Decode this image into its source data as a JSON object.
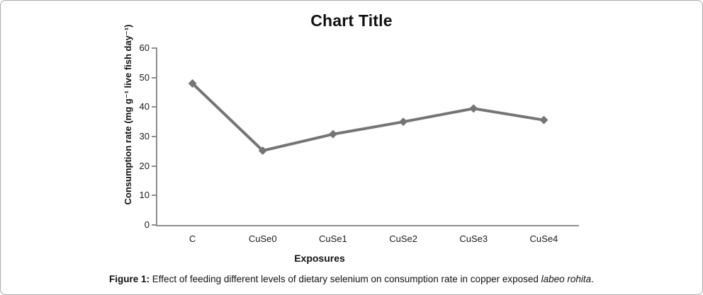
{
  "frame": {
    "background": "#ffffff",
    "border_color": "#a9a9a9"
  },
  "chart_data": {
    "type": "line",
    "title": "Chart Title",
    "xlabel": "Exposures",
    "ylabel": "Consumption rate (mg g⁻¹ live fish day⁻¹)",
    "categories": [
      "C",
      "CuSe0",
      "CuSe1",
      "CuSe2",
      "CuSe3",
      "CuSe4"
    ],
    "values": [
      48,
      25.2,
      30.8,
      35,
      39.5,
      35.6
    ],
    "ylim": [
      0,
      60
    ],
    "yticks": [
      0,
      10,
      20,
      30,
      40,
      50,
      60
    ],
    "grid": false,
    "legend": "none",
    "marker": "diamond",
    "series_color": "#757575",
    "axis_color": "#8e8e8e",
    "tick_label_color": "#1a1a1a"
  },
  "caption": {
    "bold_prefix": "Figure 1:",
    "body": " Effect of feeding different levels of dietary selenium on consumption rate in copper exposed ",
    "italic_text": "labeo rohita",
    "suffix": "."
  }
}
